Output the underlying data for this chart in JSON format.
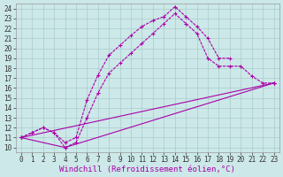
{
  "bg_color": "#cce8e8",
  "line_color": "#aa00aa",
  "grid_color": "#aacccc",
  "xlim": [
    -0.5,
    23.5
  ],
  "ylim": [
    9.5,
    24.5
  ],
  "xticks": [
    0,
    1,
    2,
    3,
    4,
    5,
    6,
    7,
    8,
    9,
    10,
    11,
    12,
    13,
    14,
    15,
    16,
    17,
    18,
    19,
    20,
    21,
    22,
    23
  ],
  "yticks": [
    10,
    11,
    12,
    13,
    14,
    15,
    16,
    17,
    18,
    19,
    20,
    21,
    22,
    23,
    24
  ],
  "xlabel": "Windchill (Refroidissement éolien,°C)",
  "curve1_x": [
    0,
    1,
    2,
    3,
    4,
    5,
    6,
    7,
    8,
    9,
    10,
    11,
    12,
    13,
    14,
    15,
    16,
    17,
    18,
    19
  ],
  "curve1_y": [
    11,
    11.5,
    12.0,
    11.5,
    10.5,
    11.0,
    14.8,
    17.3,
    19.3,
    20.3,
    21.3,
    22.2,
    22.8,
    23.2,
    24.2,
    23.2,
    22.2,
    21.0,
    19.0,
    19.0
  ],
  "curve2_x": [
    0,
    1,
    2,
    3,
    4,
    5,
    6,
    7,
    8,
    9,
    10,
    11,
    12,
    13,
    14,
    15,
    16,
    17,
    18,
    19,
    20,
    21,
    22,
    23
  ],
  "curve2_y": [
    11,
    11.5,
    12.0,
    11.5,
    10.0,
    10.5,
    13.0,
    15.5,
    17.5,
    18.5,
    19.5,
    20.5,
    21.5,
    22.5,
    23.5,
    22.5,
    21.5,
    19.0,
    18.2,
    18.2,
    18.2,
    17.2,
    16.5,
    16.5
  ],
  "line1_x": [
    0,
    23
  ],
  "line1_y": [
    11,
    16.5
  ],
  "line2_x": [
    0,
    4,
    23
  ],
  "line2_y": [
    11,
    10.0,
    16.5
  ],
  "tick_fontsize": 5.5,
  "xlabel_fontsize": 6.5,
  "lw": 0.8,
  "ms": 3.5
}
